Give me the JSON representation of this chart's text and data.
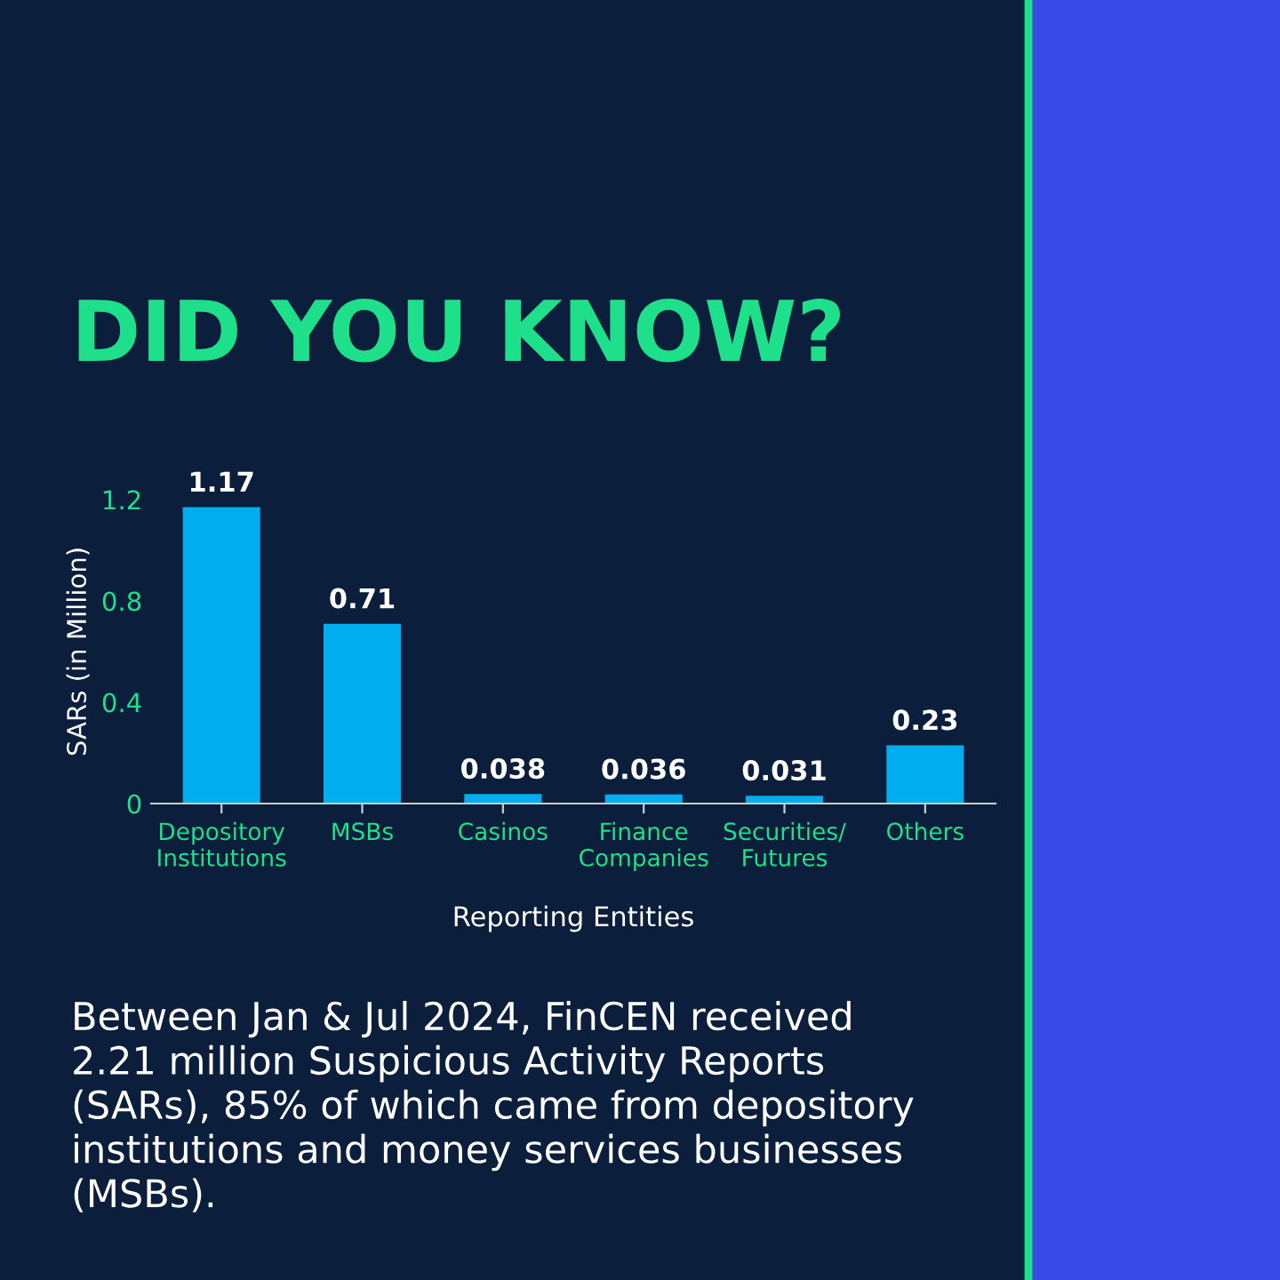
{
  "chart_data": {
    "type": "bar",
    "title": "DID YOU KNOW?",
    "categories": [
      "Depository\nInstitutions",
      "MSBs",
      "Casinos",
      "Finance\nCompanies",
      "Securities/\nFutures",
      "Others"
    ],
    "values": [
      1.17,
      0.71,
      0.038,
      0.036,
      0.031,
      0.23
    ],
    "color": "#00aeef",
    "data_labels": true,
    "xlabel": "Reporting Entities",
    "ylabel": "SARs (in Million)",
    "ylim": [
      0,
      1.2
    ],
    "yticks": [
      0,
      0.4,
      0.8,
      1.2
    ],
    "grid": false,
    "annotations": [
      "Between Jan & Jul 2024, FinCEN received\n2.21 million Suspicious Activity Reports\n(SARs), 85% of which came from depository\ninstitutions and money services businesses\n(MSBs)."
    ]
  }
}
